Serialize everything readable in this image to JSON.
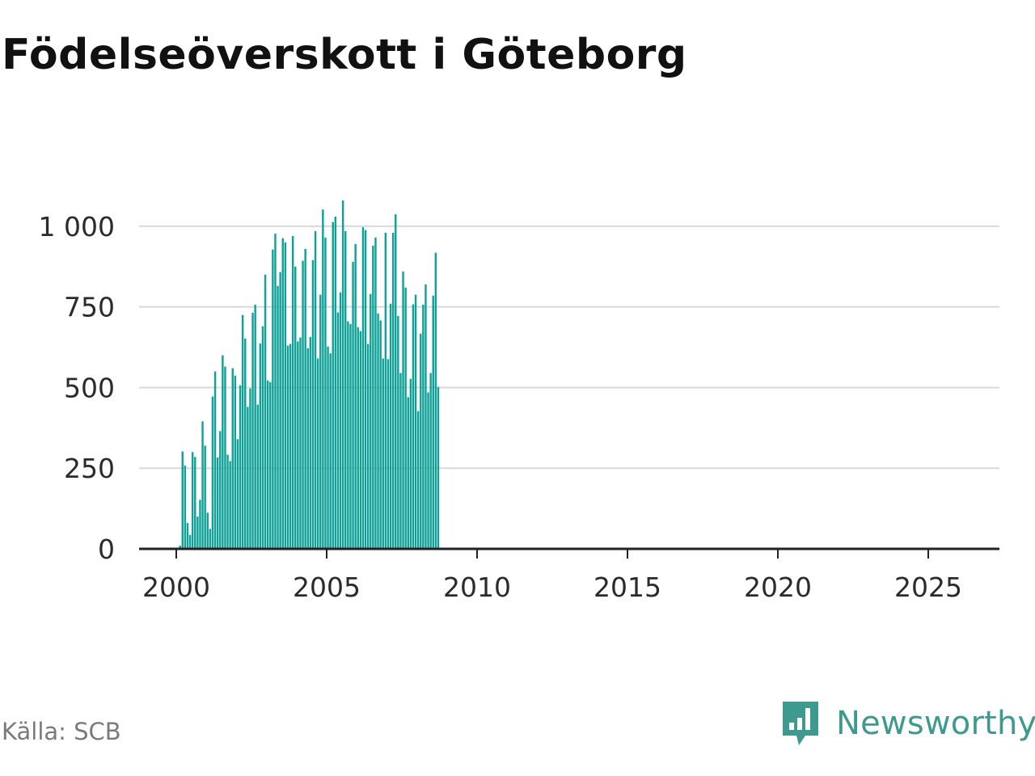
{
  "title": "Födelseöverskott i Göteborg",
  "source": "Källa: SCB",
  "brand": {
    "name": "Newsworthy",
    "logo_icon": "newsworthy-logo-icon"
  },
  "colors": {
    "bar": "#0fa197",
    "grid": "#d9d9d9",
    "axis": "#222222",
    "brand": "#3e9a8e",
    "source": "#7a7a7a"
  },
  "chart_data": {
    "type": "bar",
    "title": "Födelseöverskott i Göteborg",
    "xlabel": "",
    "ylabel": "",
    "frequency": "monthly",
    "start": "2000-01",
    "grid": true,
    "legend": "none",
    "ylim": [
      0,
      1100
    ],
    "xlim": [
      1999.25,
      2027.25
    ],
    "yticks": [
      0,
      250,
      500,
      750,
      1000
    ],
    "ytick_labels": [
      "0",
      "250",
      "500",
      "750",
      "1 000"
    ],
    "xticks": [
      2000,
      2005,
      2010,
      2015,
      2020,
      2025
    ],
    "xtick_labels": [
      "2000",
      "2005",
      "2010",
      "2015",
      "2020",
      "2025"
    ],
    "values": [
      0,
      10,
      302,
      258,
      80,
      43,
      300,
      285,
      100,
      152,
      395,
      320,
      112,
      62,
      472,
      550,
      283,
      365,
      600,
      565,
      292,
      272,
      560,
      537,
      340,
      507,
      725,
      652,
      440,
      497,
      732,
      757,
      447,
      637,
      690,
      850,
      522,
      517,
      928,
      977,
      815,
      858,
      963,
      950,
      630,
      635,
      970,
      875,
      643,
      655,
      893,
      930,
      622,
      657,
      895,
      985,
      590,
      788,
      1052,
      965,
      627,
      606,
      1013,
      1030,
      733,
      795,
      1080,
      985,
      705,
      697,
      890,
      945,
      687,
      675,
      997,
      988,
      635,
      790,
      940,
      965,
      730,
      708,
      590,
      980,
      588,
      760,
      980,
      1037,
      722,
      545,
      860,
      810,
      470,
      527,
      758,
      788,
      427,
      667,
      757,
      820,
      485,
      545,
      785,
      918,
      502
    ]
  }
}
